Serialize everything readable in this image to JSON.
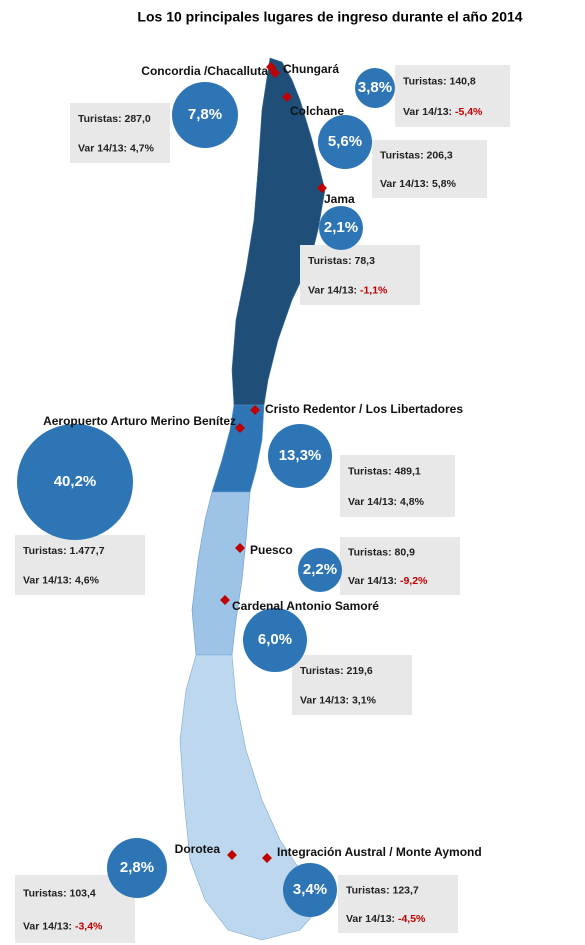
{
  "title": "Los 10 principales lugares de ingreso durante el año 2014",
  "labels": {
    "tourists": "Turistas:",
    "var": "Var 14/13:"
  },
  "points": [
    {
      "name": "Concordia /Chacalluta",
      "share": "7,8%",
      "tourists": "287,0",
      "var": "4,7%"
    },
    {
      "name": "Chungará",
      "share": "3,8%",
      "tourists": "140,8",
      "var": "-5,4%"
    },
    {
      "name": "Colchane",
      "share": "5,6%",
      "tourists": "206,3",
      "var": "5,8%"
    },
    {
      "name": "Jama",
      "share": "2,1%",
      "tourists": "78,3",
      "var": "-1,1%"
    },
    {
      "name": "Aeropuerto Arturo Merino Benítez",
      "share": "40,2%",
      "tourists": "1.477,7",
      "var": "4,6%"
    },
    {
      "name": "Cristo Redentor / Los Libertadores",
      "share": "13,3%",
      "tourists": "489,1",
      "var": "4,8%"
    },
    {
      "name": "Puesco",
      "share": "2,2%",
      "tourists": "80,9",
      "var": "-9,2%"
    },
    {
      "name": "Cardenal Antonio Samoré",
      "share": "6,0%",
      "tourists": "219,6",
      "var": "3,1%"
    },
    {
      "name": "Dorotea",
      "share": "2,8%",
      "tourists": "103,4",
      "var": "-3,4%"
    },
    {
      "name": "Integración Austral / Monte Aymond",
      "share": "3,4%",
      "tourists": "123,7",
      "var": "-4,5%"
    }
  ]
}
